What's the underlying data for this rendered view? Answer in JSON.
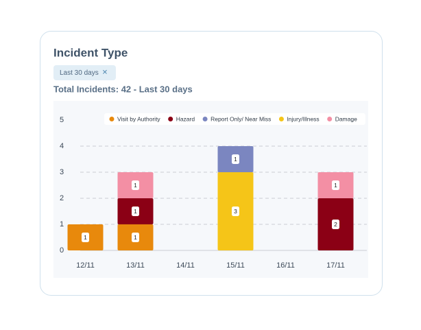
{
  "header": {
    "title": "Incident Type",
    "filter": "Last 30 days",
    "filter_close": "✕",
    "summary": "Total Incidents: 42 - Last 30 days"
  },
  "chart_data": {
    "type": "stacked_bar",
    "categories": [
      "12/11",
      "13/11",
      "14/11",
      "15/11",
      "16/11",
      "17/11"
    ],
    "series": [
      {
        "name": "Visit by Authority",
        "color": "#e8890c",
        "values": [
          1,
          1,
          0,
          0,
          0,
          0
        ]
      },
      {
        "name": "Hazard",
        "color": "#8b0015",
        "values": [
          0,
          1,
          0,
          0,
          0,
          2
        ]
      },
      {
        "name": "Report Only/ Near Miss",
        "color": "#7b86c0",
        "values": [
          0,
          0,
          0,
          1,
          0,
          0
        ]
      },
      {
        "name": "Injury/Illness",
        "color": "#f5c518",
        "values": [
          0,
          0,
          0,
          3,
          0,
          0
        ]
      },
      {
        "name": "Damage",
        "color": "#f38fa4",
        "values": [
          0,
          1,
          0,
          0,
          0,
          1
        ]
      }
    ],
    "ylim": [
      0,
      5
    ],
    "yticks": [
      0,
      1,
      2,
      3,
      4,
      5
    ],
    "grid": true,
    "legend": "top"
  }
}
